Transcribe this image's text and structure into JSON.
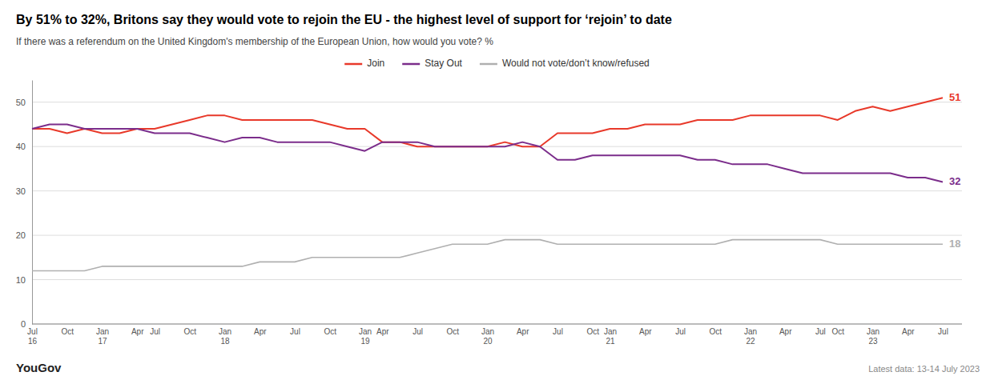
{
  "chart_data": {
    "type": "line",
    "title": "By 51% to 32%, Britons say they would vote to rejoin the EU - the highest level of support for ‘rejoin’ to date",
    "subtitle": "If there was a referendum on the United Kingdom's membership of the European Union, how would you vote? %",
    "source": "YouGov",
    "note": "Latest data: 13-14 July 2023",
    "categories": [
      "Jul\n16",
      null,
      "Oct",
      null,
      "Jan\n17",
      null,
      "Apr",
      "Jul",
      null,
      "Oct",
      null,
      "Jan\n18",
      null,
      "Apr",
      null,
      "Jul",
      null,
      "Oct",
      null,
      "Jan\n19",
      "Apr",
      null,
      "Jul",
      null,
      "Oct",
      null,
      "Jan\n20",
      null,
      "Apr",
      null,
      "Jul",
      null,
      "Oct",
      "Jan\n21",
      null,
      "Apr",
      null,
      "Jul",
      null,
      "Oct",
      null,
      "Jan\n22",
      null,
      "Apr",
      null,
      "Jul",
      "Oct",
      null,
      "Jan\n23",
      null,
      "Apr",
      null,
      "Jul"
    ],
    "series": [
      {
        "name": "Join",
        "color": "#e8392a",
        "values": [
          44,
          44,
          43,
          44,
          43,
          43,
          44,
          44,
          45,
          46,
          47,
          47,
          46,
          46,
          46,
          46,
          46,
          45,
          44,
          44,
          41,
          41,
          40,
          40,
          40,
          40,
          40,
          41,
          40,
          40,
          43,
          43,
          43,
          44,
          44,
          45,
          45,
          45,
          46,
          46,
          46,
          47,
          47,
          47,
          47,
          47,
          46,
          48,
          49,
          48,
          49,
          50,
          51
        ]
      },
      {
        "name": "Stay Out",
        "color": "#7b2d8b",
        "values": [
          44,
          45,
          45,
          44,
          44,
          44,
          44,
          43,
          43,
          43,
          42,
          41,
          42,
          42,
          41,
          41,
          41,
          41,
          40,
          39,
          41,
          41,
          41,
          40,
          40,
          40,
          40,
          40,
          41,
          40,
          37,
          37,
          38,
          38,
          38,
          38,
          38,
          38,
          37,
          37,
          36,
          36,
          36,
          35,
          34,
          34,
          34,
          34,
          34,
          34,
          33,
          33,
          32
        ]
      },
      {
        "name": "Would not vote/don’t know/refused",
        "color": "#b0b0b0",
        "values": [
          12,
          12,
          12,
          12,
          13,
          13,
          13,
          13,
          13,
          13,
          13,
          13,
          13,
          14,
          14,
          14,
          15,
          15,
          15,
          15,
          15,
          15,
          16,
          17,
          18,
          18,
          18,
          19,
          19,
          19,
          18,
          18,
          18,
          18,
          18,
          18,
          18,
          18,
          18,
          18,
          19,
          19,
          19,
          19,
          19,
          19,
          18,
          18,
          18,
          18,
          18,
          18,
          18
        ]
      }
    ],
    "annotations": [
      {
        "text": "51",
        "y": 51,
        "color": "#e8392a"
      },
      {
        "text": "32",
        "y": 32,
        "color": "#7b2d8b"
      },
      {
        "text": "18",
        "y": 18,
        "color": "#b0b0b0"
      }
    ],
    "ylim": [
      0,
      55
    ],
    "yticks": [
      0,
      10,
      20,
      30,
      40,
      50
    ],
    "grid": true,
    "legend": "top"
  }
}
